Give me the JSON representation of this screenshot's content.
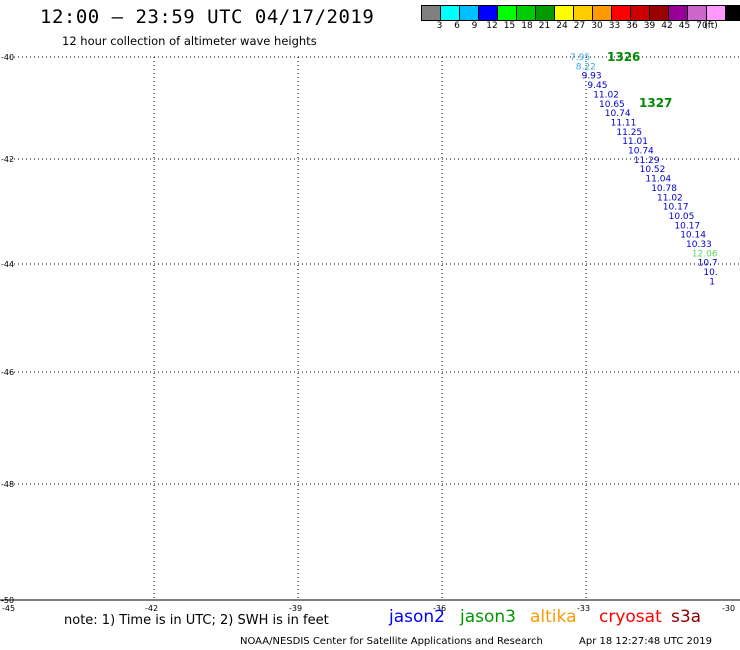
{
  "header": {
    "title": "12:00 – 23:59 UTC 04/17/2019",
    "subtitle": "12 hour collection of altimeter wave heights"
  },
  "legend": {
    "colors": [
      "#808080",
      "#00ffff",
      "#00bfff",
      "#0000ff",
      "#00ff00",
      "#00cc00",
      "#009900",
      "#ffff00",
      "#ffcc00",
      "#ff9900",
      "#ff0000",
      "#cc0000",
      "#990000",
      "#990099",
      "#cc66cc",
      "#ff99ff",
      "#000000"
    ],
    "labels": [
      "3",
      "6",
      "9",
      "12",
      "15",
      "18",
      "21",
      "24",
      "27",
      "30",
      "33",
      "36",
      "39",
      "42",
      "45",
      "70",
      "(ft)"
    ]
  },
  "map": {
    "lat_labels": [
      "-40",
      "-42",
      "-44",
      "-46",
      "-48",
      "-50"
    ],
    "lon_labels": [
      "-45",
      "-42",
      "-39",
      "-36",
      "-33",
      "-30"
    ],
    "track_ids": [
      {
        "text": "1326",
        "color": "#008800"
      },
      {
        "text": "1327",
        "color": "#008800"
      }
    ],
    "track": [
      {
        "v": "7.95",
        "c": "#33aadd"
      },
      {
        "v": "8.22",
        "c": "#33aadd"
      },
      {
        "v": "9.93",
        "c": "#0000cc"
      },
      {
        "v": "9.45",
        "c": "#0000cc"
      },
      {
        "v": "11.02",
        "c": "#0000cc"
      },
      {
        "v": "10.65",
        "c": "#0000cc"
      },
      {
        "v": "10.74",
        "c": "#0000cc"
      },
      {
        "v": "11.11",
        "c": "#0000cc"
      },
      {
        "v": "11.25",
        "c": "#0000cc"
      },
      {
        "v": "11.01",
        "c": "#0000cc"
      },
      {
        "v": "10.74",
        "c": "#0000cc"
      },
      {
        "v": "11.29",
        "c": "#0000cc"
      },
      {
        "v": "10.52",
        "c": "#0000cc"
      },
      {
        "v": "11.04",
        "c": "#0000cc"
      },
      {
        "v": "10.78",
        "c": "#0000cc"
      },
      {
        "v": "11.02",
        "c": "#0000cc"
      },
      {
        "v": "10.17",
        "c": "#0000cc"
      },
      {
        "v": "10.05",
        "c": "#0000cc"
      },
      {
        "v": "10.17",
        "c": "#0000cc"
      },
      {
        "v": "10.14",
        "c": "#0000cc"
      },
      {
        "v": "10.33",
        "c": "#0000cc"
      },
      {
        "v": "12.06",
        "c": "#55dd55"
      },
      {
        "v": "10.7",
        "c": "#0000cc"
      },
      {
        "v": "10.",
        "c": "#0000cc"
      },
      {
        "v": "1",
        "c": "#0000cc"
      }
    ]
  },
  "note": "note:  1) Time is in UTC;  2) SWH is in feet",
  "satellites": [
    {
      "name": "jason2",
      "color": "#0000ff"
    },
    {
      "name": "jason3",
      "color": "#009900"
    },
    {
      "name": "altika",
      "color": "#ff9900"
    },
    {
      "name": "cryosat",
      "color": "#ff0000"
    },
    {
      "name": "s3a",
      "color": "#880000"
    }
  ],
  "footer": {
    "credit": "NOAA/NESDIS Center for Satellite Applications and Research",
    "timestamp": "Apr 18 12:27:48 UTC 2019"
  }
}
